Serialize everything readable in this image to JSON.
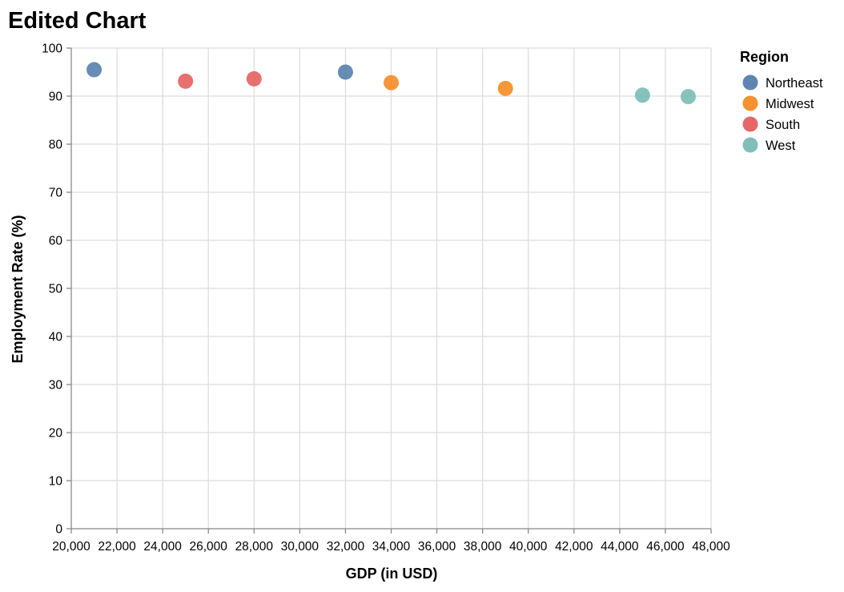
{
  "chart_data": {
    "type": "scatter",
    "title": "Edited Chart",
    "xlabel": "GDP (in USD)",
    "ylabel": "Employment Rate (%)",
    "xlim": [
      20000,
      48000
    ],
    "ylim": [
      0,
      100
    ],
    "x_ticks": [
      20000,
      22000,
      24000,
      26000,
      28000,
      30000,
      32000,
      34000,
      36000,
      38000,
      40000,
      42000,
      44000,
      46000,
      48000
    ],
    "x_tick_labels": [
      "20,000",
      "22,000",
      "24,000",
      "26,000",
      "28,000",
      "30,000",
      "32,000",
      "34,000",
      "36,000",
      "38,000",
      "40,000",
      "42,000",
      "44,000",
      "46,000",
      "48,000"
    ],
    "y_ticks": [
      0,
      10,
      20,
      30,
      40,
      50,
      60,
      70,
      80,
      90,
      100
    ],
    "y_tick_labels": [
      "0",
      "10",
      "20",
      "30",
      "40",
      "50",
      "60",
      "70",
      "80",
      "90",
      "100"
    ],
    "grid": true,
    "legend": {
      "title": "Region",
      "placement": "right"
    },
    "series": [
      {
        "name": "Northeast",
        "color": "#4c78a8",
        "points": [
          {
            "x": 21000,
            "y": 95.5
          },
          {
            "x": 32000,
            "y": 95.0
          }
        ]
      },
      {
        "name": "Midwest",
        "color": "#f58518",
        "points": [
          {
            "x": 34000,
            "y": 92.8
          },
          {
            "x": 39000,
            "y": 91.6
          }
        ]
      },
      {
        "name": "South",
        "color": "#e45756",
        "points": [
          {
            "x": 25000,
            "y": 93.1
          },
          {
            "x": 28000,
            "y": 93.6
          }
        ]
      },
      {
        "name": "West",
        "color": "#72b7b2",
        "points": [
          {
            "x": 45000,
            "y": 90.2
          },
          {
            "x": 47000,
            "y": 89.9
          }
        ]
      }
    ]
  }
}
